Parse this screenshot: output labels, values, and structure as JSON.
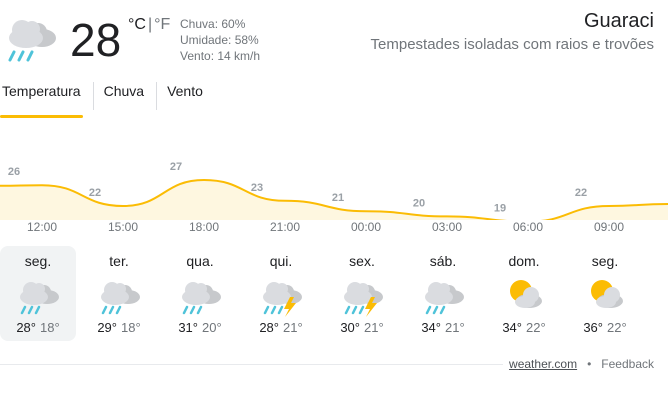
{
  "current": {
    "temperature": "28",
    "unit_c": "°C",
    "unit_sep": "|",
    "unit_f": "°F",
    "precip": "Chuva: 60%",
    "humidity": "Umidade: 58%",
    "wind": "Vento: 14 km/h",
    "icon": "rain-cloud-icon"
  },
  "location": "Guaraci",
  "condition": "Tempestades isoladas com raios e trovões",
  "tabs": [
    {
      "label": "Temperatura",
      "active": true
    },
    {
      "label": "Chuva",
      "active": false
    },
    {
      "label": "Vento",
      "active": false
    }
  ],
  "chart_data": {
    "type": "area",
    "x": [
      "12:00",
      "15:00",
      "18:00",
      "21:00",
      "00:00",
      "03:00",
      "06:00",
      "09:00"
    ],
    "values": [
      26,
      22,
      27,
      23,
      21,
      20,
      19,
      22
    ],
    "unit": "°C",
    "line_color": "#fbbc04",
    "fill_color": "#fef7e0"
  },
  "days": [
    {
      "name": "seg.",
      "high": "28°",
      "low": "18°",
      "icon": "rain-cloud-icon",
      "selected": true
    },
    {
      "name": "ter.",
      "high": "29°",
      "low": "18°",
      "icon": "rain-cloud-icon",
      "selected": false
    },
    {
      "name": "qua.",
      "high": "31°",
      "low": "20°",
      "icon": "rain-cloud-icon",
      "selected": false
    },
    {
      "name": "qui.",
      "high": "28°",
      "low": "21°",
      "icon": "thunderstorm-icon",
      "selected": false
    },
    {
      "name": "sex.",
      "high": "30°",
      "low": "21°",
      "icon": "thunderstorm-icon",
      "selected": false
    },
    {
      "name": "sáb.",
      "high": "34°",
      "low": "21°",
      "icon": "rain-cloud-icon",
      "selected": false
    },
    {
      "name": "dom.",
      "high": "34°",
      "low": "22°",
      "icon": "partly-cloudy-icon",
      "selected": false
    },
    {
      "name": "seg.",
      "high": "36°",
      "low": "22°",
      "icon": "partly-cloudy-icon",
      "selected": false
    }
  ],
  "footer": {
    "source": "weather.com",
    "separator": "•",
    "feedback": "Feedback"
  }
}
